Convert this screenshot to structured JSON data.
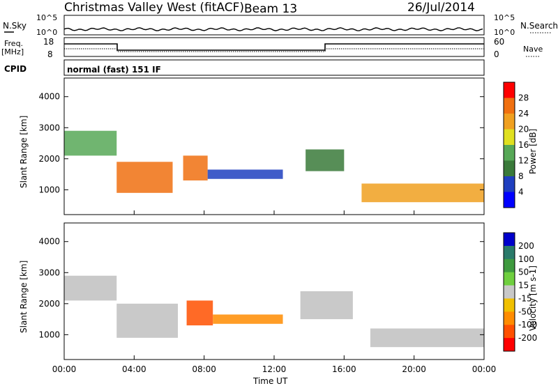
{
  "header": {
    "station": "Christmas Valley West (fitACF)",
    "beam": "Beam 13",
    "date": "26/Jul/2014"
  },
  "panels": {
    "nsky_label": "N.Sky",
    "nsearch_label": "N.Search",
    "nsky_ticks": [
      "10^5",
      "10^0"
    ],
    "nsky_right_ticks": [
      "10^5",
      "10^0"
    ],
    "freq_label_line1": "Freq.",
    "freq_label_line2": "[MHz]",
    "freq_ticks": [
      "18",
      "8"
    ],
    "nave_label": "Nave",
    "nave_ticks": [
      "60",
      "0"
    ],
    "cpid_label": "CPID",
    "cpid_value": "normal (fast) 151 IF"
  },
  "colors": {
    "power_scale": [
      "#0000ff",
      "#1f3fbf",
      "#3a7a3a",
      "#57a857",
      "#e0e020",
      "#f0a020",
      "#f07010",
      "#ff0000"
    ],
    "velocity_scale": [
      "#0000cc",
      "#2a7a6a",
      "#3f9a3f",
      "#6fcf3f",
      "#c8c8c8",
      "#f0c000",
      "#ff8c00",
      "#ff5000",
      "#ff0000"
    ],
    "ground_scatter": "#c0c0c0"
  },
  "chart_data": [
    {
      "type": "heatmap",
      "quantity": "Power",
      "ylabel": "Slant Range [km]",
      "yticks": [
        "1000",
        "2000",
        "3000",
        "4000"
      ],
      "ylim": [
        200,
        4600
      ],
      "xlim": [
        0,
        24
      ],
      "colorbar_label": "Power [dB]",
      "colorbar_ticks": [
        "4",
        "8",
        "12",
        "16",
        "20",
        "24",
        "28"
      ],
      "colorbar_range": [
        0,
        32
      ],
      "regions": [
        {
          "t0": 0.0,
          "t1": 3.0,
          "r0": 2100,
          "r1": 2900,
          "value": 14
        },
        {
          "t0": 3.0,
          "t1": 6.2,
          "r0": 900,
          "r1": 1900,
          "value": 26
        },
        {
          "t0": 6.8,
          "t1": 8.2,
          "r0": 1300,
          "r1": 2100,
          "value": 24
        },
        {
          "t0": 8.2,
          "t1": 12.5,
          "r0": 1350,
          "r1": 1650,
          "value": 6
        },
        {
          "t0": 13.8,
          "t1": 16.0,
          "r0": 1600,
          "r1": 2300,
          "value": 8
        },
        {
          "t0": 17.0,
          "t1": 24.0,
          "r0": 600,
          "r1": 1200,
          "value": 22
        }
      ]
    },
    {
      "type": "heatmap",
      "quantity": "Velocity",
      "ylabel": "Slant Range [km]",
      "yticks": [
        "1000",
        "2000",
        "3000",
        "4000"
      ],
      "ylim": [
        200,
        4600
      ],
      "xlim": [
        0,
        24
      ],
      "xlabel": "Time UT",
      "xticks": [
        "00:00",
        "04:00",
        "08:00",
        "12:00",
        "16:00",
        "20:00",
        "00:00"
      ],
      "colorbar_label": "Velocity [m s-1]",
      "colorbar_ticks": [
        "200",
        "100",
        "50",
        "15",
        "-15",
        "-50",
        "-100",
        "-200"
      ],
      "regions": [
        {
          "t0": 0.0,
          "t1": 3.0,
          "r0": 2100,
          "r1": 2900,
          "value": "ground scatter"
        },
        {
          "t0": 3.0,
          "t1": 6.5,
          "r0": 900,
          "r1": 2000,
          "value": "ground scatter"
        },
        {
          "t0": 7.0,
          "t1": 8.5,
          "r0": 1300,
          "r1": 2100,
          "value": -150
        },
        {
          "t0": 8.5,
          "t1": 12.5,
          "r0": 1350,
          "r1": 1650,
          "value": -80
        },
        {
          "t0": 13.5,
          "t1": 16.5,
          "r0": 1500,
          "r1": 2400,
          "value": "ground scatter"
        },
        {
          "t0": 17.5,
          "t1": 24.0,
          "r0": 600,
          "r1": 1200,
          "value": "ground scatter"
        }
      ]
    }
  ]
}
